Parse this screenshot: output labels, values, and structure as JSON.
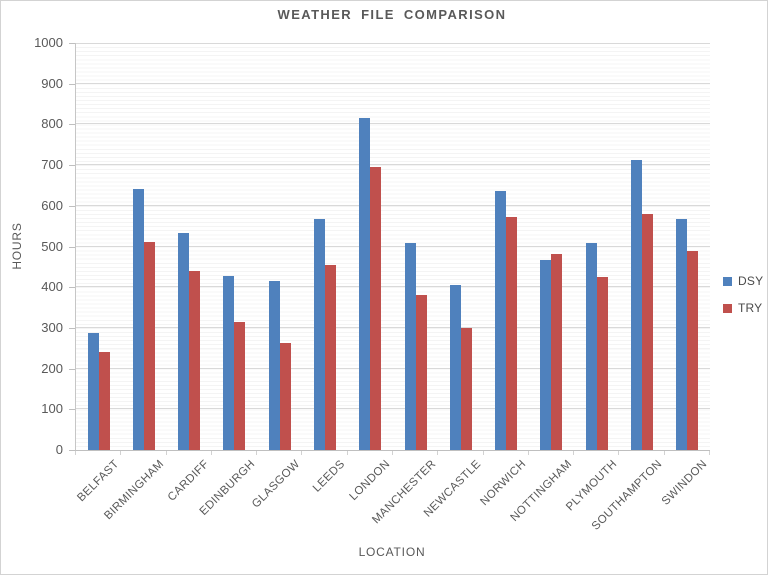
{
  "chart_data": {
    "type": "bar",
    "title": "WEATHER FILE COMPARISON",
    "xlabel": "LOCATION",
    "ylabel": "HOURS",
    "ylim": [
      0,
      1000
    ],
    "yticks": [
      0,
      100,
      200,
      300,
      400,
      500,
      600,
      700,
      800,
      900,
      1000
    ],
    "grid": {
      "major": true,
      "minor": true,
      "minor_step": 10
    },
    "legend_position": "right",
    "categories": [
      "BELFAST",
      "BIRMINGHAM",
      "CARDIFF",
      "EDINBURGH",
      "GLASGOW",
      "LEEDS",
      "LONDON",
      "MANCHESTER",
      "NEWCASTLE",
      "NORWICH",
      "NOTTINGHAM",
      "PLYMOUTH",
      "SOUTHAMPTON",
      "SWINDON"
    ],
    "series": [
      {
        "name": "DSY",
        "color": "#4F81BD",
        "values": [
          288,
          642,
          533,
          427,
          415,
          568,
          815,
          508,
          405,
          636,
          466,
          508,
          712,
          568
        ]
      },
      {
        "name": "TRY",
        "color": "#C0504D",
        "values": [
          241,
          512,
          441,
          314,
          262,
          454,
          695,
          382,
          301,
          573,
          481,
          426,
          579,
          489
        ]
      }
    ]
  },
  "theme": {
    "text_color": "#595959",
    "major_gridline_color": "#D9D9D9",
    "minor_gridline_color": "#F4F4F4",
    "axis_line_color": "#BFBFBF",
    "frame_border_color": "#D3D3D3",
    "background": "#FFFFFF"
  }
}
